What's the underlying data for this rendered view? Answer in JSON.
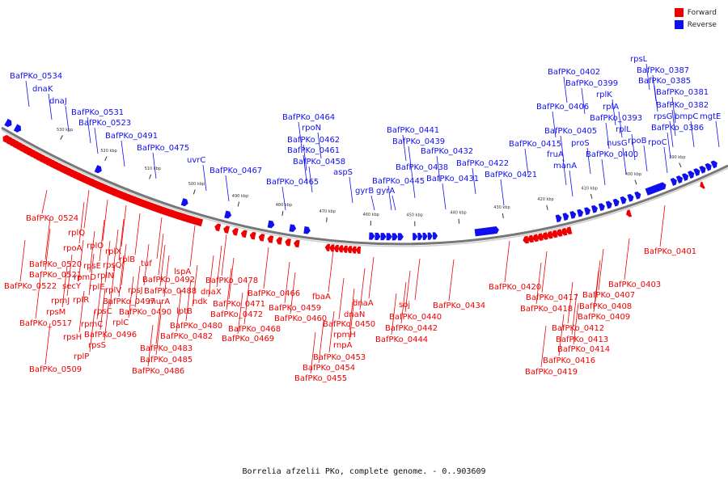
{
  "legend": [
    {
      "label": "Forward",
      "color": "#ee0000"
    },
    {
      "label": "Reverse",
      "color": "#1010ee"
    }
  ],
  "caption": "Borrelia afzelii PKo, complete genome. - 0..903609",
  "colors": {
    "forward": "#ee0000",
    "reverse": "#1010ee",
    "backbone": "#888888"
  },
  "ticks": [
    "530 kbp",
    "520 kbp",
    "510 kbp",
    "500 kbp",
    "490 kbp",
    "480 kbp",
    "470 kbp",
    "460 kbp",
    "450 kbp",
    "440 kbp",
    "430 kbp",
    "420 kbp",
    "410 kbp",
    "400 kbp",
    "390 kbp"
  ],
  "reverse_labels": [
    "BafPKo_0534",
    "dnaK",
    "dnaJ",
    "BafPKo_0531",
    "BafPKo_0523",
    "BafPKo_0491",
    "BafPKo_0475",
    "uvrC",
    "BafPKo_0467",
    "BafPKo_0464",
    "rpoN",
    "BafPKo_0462",
    "BafPKo_0461",
    "BafPKo_0458",
    "BafPKo_0465",
    "aspS",
    "BafPKo_0441",
    "BafPKo_0439",
    "BafPKo_0432",
    "gyrB",
    "gyrA",
    "BafPKo_0445",
    "BafPKo_0438",
    "BafPKo_0431",
    "BafPKo_0422",
    "BafPKo_0421",
    "BafPKo_0415",
    "fruA",
    "manA",
    "BafPKo_0406",
    "BafPKo_0405",
    "proS",
    "BafPKo_0402",
    "BafPKo_0399",
    "rplK",
    "rplA",
    "BafPKo_0393",
    "rplL",
    "nusG",
    "BafPKo_0400",
    "rpoB",
    "rpsL",
    "BafPKo_0387",
    "BafPKo_0385",
    "BafPKo_0381",
    "BafPKo_0382",
    "rpsG",
    "bmpC",
    "mgtE",
    "BafPKo_0386",
    "rpoC"
  ],
  "forward_labels": [
    "BafPKo_0524",
    "rplQ",
    "rpoA",
    "rplO",
    "rplX",
    "rplB",
    "tuf",
    "BafPKo_0520",
    "rpsE",
    "rpsQ",
    "rplN",
    "BafPKo_0521",
    "rpmD",
    "BafPKo_0522",
    "secY",
    "rplE",
    "rplV",
    "rpsJ",
    "BafPKo_0492",
    "BafPKo_0488",
    "lspA",
    "BafPKo_0478",
    "rpmJ",
    "rplR",
    "BafPKo_0497",
    "murA",
    "ndk",
    "dnaX",
    "BafPKo_0471",
    "BafPKo_0472",
    "rpsM",
    "rpsC",
    "BafPKo_0490",
    "lptB",
    "BafPKo_0480",
    "BafPKo_0517",
    "rpmC",
    "rplC",
    "BafPKo_0482",
    "BafPKo_0468",
    "BafPKo_0469",
    "rpsH",
    "BafPKo_0496",
    "rpsS",
    "BafPKo_0483",
    "rplP",
    "BafPKo_0485",
    "BafPKo_0509",
    "BafPKo_0486",
    "BafPKo_0466",
    "BafPKo_0459",
    "BafPKo_0460",
    "fbaA",
    "dnaA",
    "dnaN",
    "BafPKo_0450",
    "rpmH",
    "rnpA",
    "BafPKo_0453",
    "BafPKo_0454",
    "BafPKo_0455",
    "soj",
    "BafPKo_0440",
    "BafPKo_0442",
    "BafPKo_0444",
    "BafPKo_0434",
    "BafPKo_0401",
    "BafPKo_0403",
    "BafPKo_0420",
    "BafPKo_0417",
    "BafPKo_0407",
    "BafPKo_0418",
    "BafPKo_0408",
    "BafPKo_0409",
    "BafPKo_0412",
    "BafPKo_0413",
    "BafPKo_0414",
    "BafPKo_0416",
    "BafPKo_0419"
  ]
}
